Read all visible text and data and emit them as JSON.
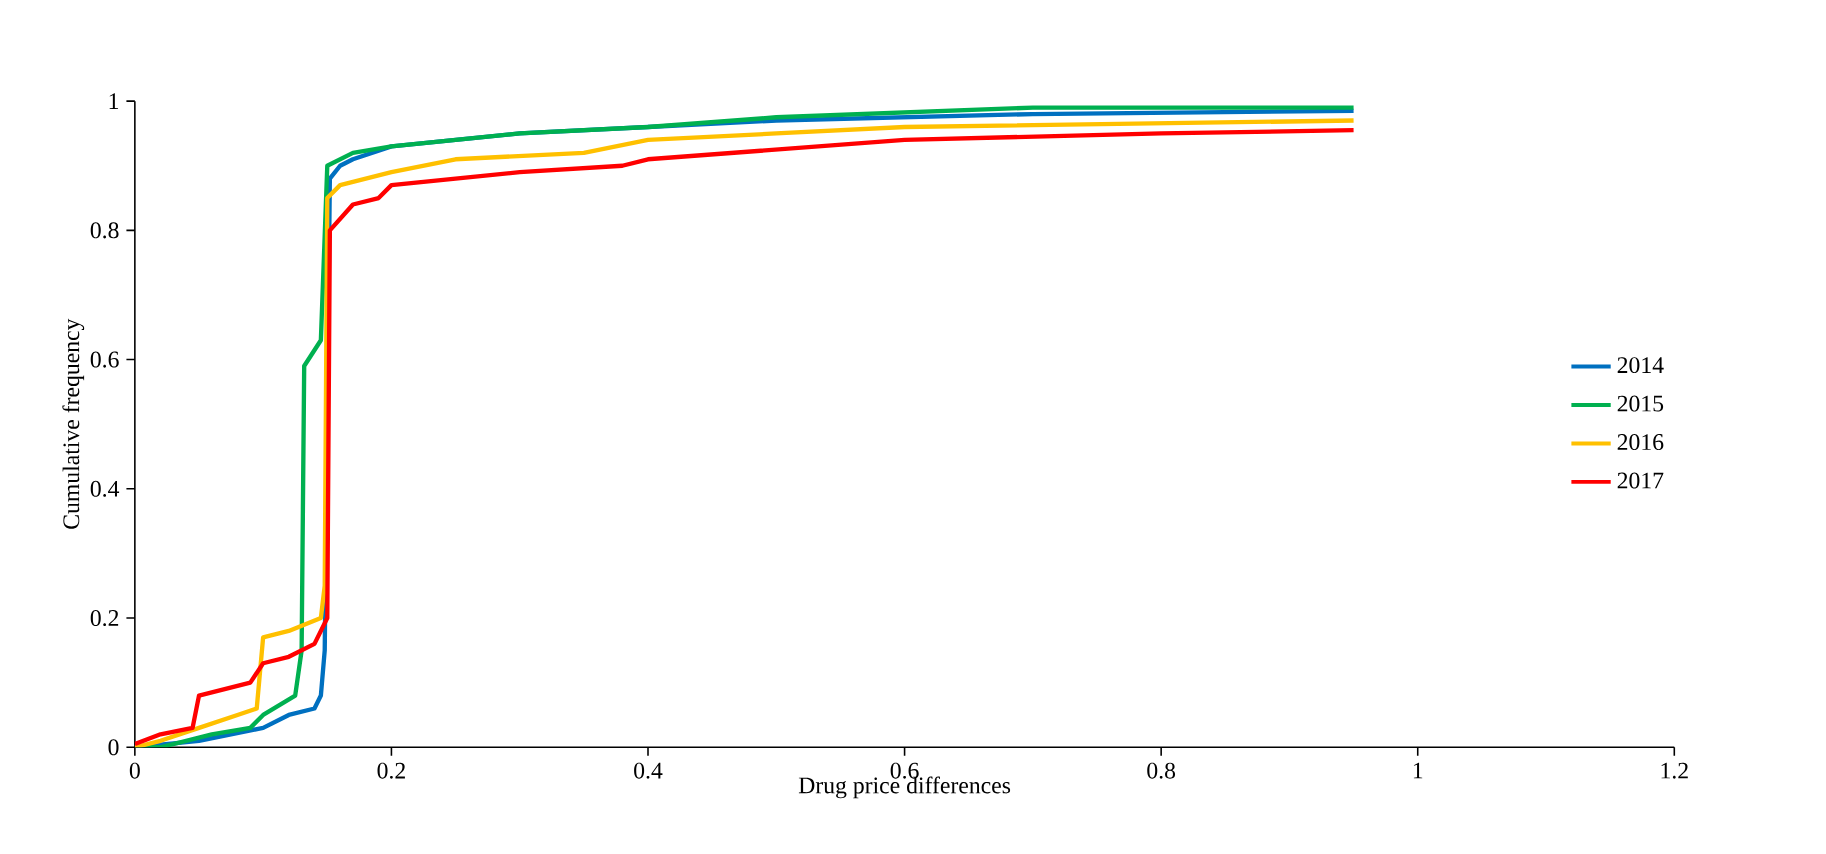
{
  "chart_data": {
    "type": "line",
    "xlabel": "Drug price differences",
    "ylabel": "Cumulative frequency",
    "xlim": [
      0,
      1.2
    ],
    "xticks": [
      0,
      0.2,
      0.4,
      0.6,
      0.8,
      1,
      1.2
    ],
    "ylim": [
      0,
      1
    ],
    "yticks": [
      0,
      0.2,
      0.4,
      0.6,
      0.8,
      1
    ],
    "grid": false,
    "legend": "right",
    "marker": "none",
    "line_style": "solid",
    "series": [
      {
        "name": "2014",
        "color": "#0070c0",
        "x": [
          0,
          0.05,
          0.1,
          0.12,
          0.14,
          0.145,
          0.148,
          0.152,
          0.16,
          0.17,
          0.2,
          0.3,
          0.4,
          0.5,
          0.7,
          0.95
        ],
        "values": [
          0,
          0.01,
          0.03,
          0.05,
          0.06,
          0.08,
          0.15,
          0.88,
          0.9,
          0.91,
          0.93,
          0.95,
          0.96,
          0.97,
          0.98,
          0.985
        ]
      },
      {
        "name": "2015",
        "color": "#00b050",
        "x": [
          0,
          0.02,
          0.06,
          0.09,
          0.1,
          0.125,
          0.13,
          0.132,
          0.145,
          0.15,
          0.17,
          0.2,
          0.3,
          0.4,
          0.5,
          0.7,
          0.95
        ],
        "values": [
          0,
          0,
          0.02,
          0.03,
          0.05,
          0.08,
          0.15,
          0.59,
          0.63,
          0.9,
          0.92,
          0.93,
          0.95,
          0.96,
          0.975,
          0.99,
          0.99
        ]
      },
      {
        "name": "2016",
        "color": "#ffc000",
        "x": [
          0,
          0.02,
          0.05,
          0.08,
          0.095,
          0.1,
          0.12,
          0.145,
          0.148,
          0.15,
          0.16,
          0.2,
          0.25,
          0.35,
          0.4,
          0.5,
          0.6,
          0.95
        ],
        "values": [
          0,
          0.01,
          0.03,
          0.05,
          0.06,
          0.17,
          0.18,
          0.2,
          0.25,
          0.85,
          0.87,
          0.89,
          0.91,
          0.92,
          0.94,
          0.95,
          0.96,
          0.97
        ]
      },
      {
        "name": "2017",
        "color": "#ff0000",
        "x": [
          0,
          0.02,
          0.045,
          0.05,
          0.07,
          0.09,
          0.1,
          0.12,
          0.14,
          0.15,
          0.152,
          0.17,
          0.19,
          0.2,
          0.25,
          0.3,
          0.38,
          0.4,
          0.5,
          0.6,
          0.8,
          0.95
        ],
        "values": [
          0.005,
          0.02,
          0.03,
          0.08,
          0.09,
          0.1,
          0.13,
          0.14,
          0.16,
          0.2,
          0.8,
          0.84,
          0.85,
          0.87,
          0.88,
          0.89,
          0.9,
          0.91,
          0.925,
          0.94,
          0.95,
          0.955
        ]
      }
    ]
  }
}
